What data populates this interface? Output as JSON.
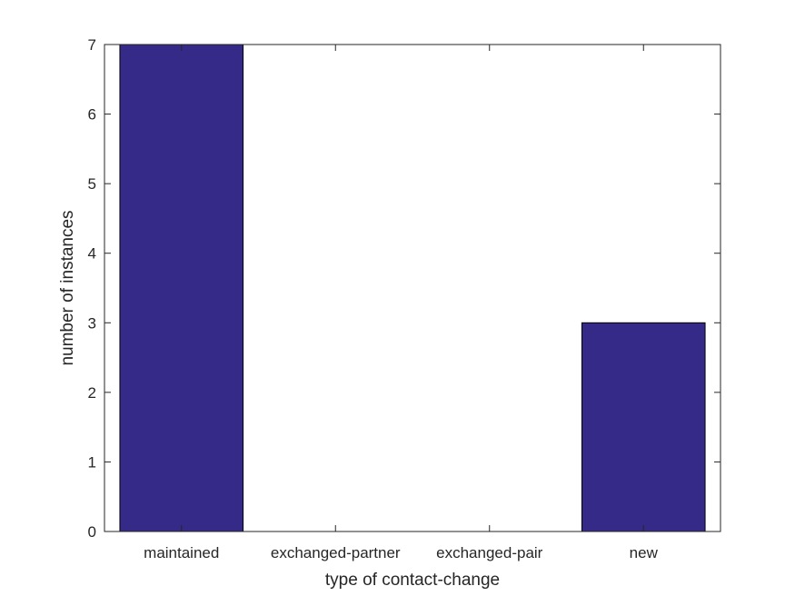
{
  "chart_data": {
    "type": "bar",
    "title": "",
    "xlabel": "type of contact-change",
    "ylabel": "number of instances",
    "categories": [
      "maintained",
      "exchanged-partner",
      "exchanged-pair",
      "new"
    ],
    "values": [
      7,
      0,
      0,
      3
    ],
    "ylim": [
      0,
      7
    ],
    "yticks": [
      "0",
      "1",
      "2",
      "3",
      "4",
      "5",
      "6",
      "7"
    ],
    "grid": false,
    "bar_color": "#352a87",
    "axis_color": "#262626"
  }
}
